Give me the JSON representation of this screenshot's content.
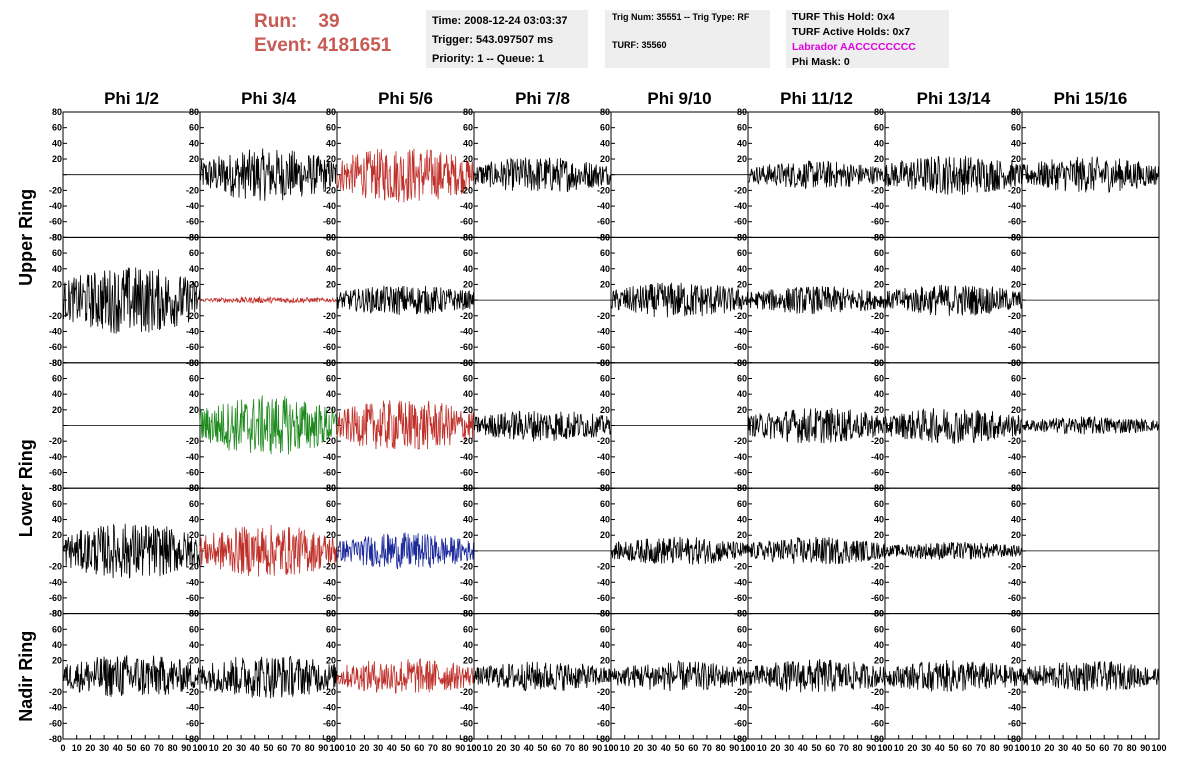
{
  "header": {
    "run_label": "Run:",
    "run_value": "39",
    "event_label": "Event:",
    "event_value": "4181651"
  },
  "info_box_1": {
    "time": "Time: 2008-12-24 03:03:37",
    "trigger": "Trigger: 543.097507 ms",
    "priority": "Priority: 1 -- Queue: 1"
  },
  "info_box_2": {
    "trig": "Trig Num: 35551 -- Trig Type: RF",
    "turf": "TURF: 35560"
  },
  "info_box_3": {
    "this_hold": "TURF This Hold: 0x4",
    "active_holds": "TURF Active Holds: 0x7",
    "labrador": "Labrador AACCCCCCCC",
    "phi_mask": "Phi Mask: 0"
  },
  "colors": {
    "run_text": "#c85a54",
    "labrador_text": "#e000e0",
    "trace_black": "#000000",
    "trace_red": "#c0302a",
    "trace_green": "#1e8a1e",
    "trace_blue": "#1c2a9c"
  },
  "chart_data": {
    "type": "line",
    "description_of_grid": "5 rows x 8 columns of waveform panels",
    "columns": [
      "Phi 1/2",
      "Phi 3/4",
      "Phi 5/6",
      "Phi 7/8",
      "Phi 9/10",
      "Phi 11/12",
      "Phi 13/14",
      "Phi 15/16"
    ],
    "row_groups": [
      "Upper Ring",
      "Lower Ring",
      "Nadir Ring"
    ],
    "xlim": [
      0,
      100
    ],
    "ylim": [
      -80,
      80
    ],
    "x_ticks": [
      "0",
      "10",
      "20",
      "30",
      "40",
      "50",
      "60",
      "70",
      "80",
      "90",
      "100"
    ],
    "y_ticks": [
      "-80",
      "-60",
      "-40",
      "-20",
      "0",
      "20",
      "40",
      "60",
      "80"
    ],
    "panels": [
      [
        {
          "c": "flat",
          "a": 0
        },
        {
          "c": "black",
          "a": 26
        },
        {
          "c": "red",
          "a": 28
        },
        {
          "c": "black",
          "a": 18
        },
        {
          "c": "flat",
          "a": 0
        },
        {
          "c": "black",
          "a": 14
        },
        {
          "c": "black",
          "a": 20
        },
        {
          "c": "black",
          "a": 18
        }
      ],
      [
        {
          "c": "black",
          "a": 34
        },
        {
          "c": "red",
          "a": 3
        },
        {
          "c": "black",
          "a": 15
        },
        {
          "c": "flat",
          "a": 0
        },
        {
          "c": "black",
          "a": 18
        },
        {
          "c": "black",
          "a": 14
        },
        {
          "c": "black",
          "a": 16
        },
        {
          "c": "flat",
          "a": 0
        }
      ],
      [
        {
          "c": "flat",
          "a": 0
        },
        {
          "c": "green",
          "a": 30
        },
        {
          "c": "red",
          "a": 26
        },
        {
          "c": "black",
          "a": 16
        },
        {
          "c": "flat",
          "a": 0
        },
        {
          "c": "black",
          "a": 18
        },
        {
          "c": "black",
          "a": 18
        },
        {
          "c": "black",
          "a": 9
        }
      ],
      [
        {
          "c": "black",
          "a": 28
        },
        {
          "c": "red",
          "a": 26
        },
        {
          "c": "blue",
          "a": 18
        },
        {
          "c": "flat",
          "a": 0
        },
        {
          "c": "black",
          "a": 14
        },
        {
          "c": "black",
          "a": 14
        },
        {
          "c": "black",
          "a": 9
        },
        {
          "c": "flat",
          "a": 0
        }
      ],
      [
        {
          "c": "black",
          "a": 22
        },
        {
          "c": "black",
          "a": 22
        },
        {
          "c": "red",
          "a": 18
        },
        {
          "c": "black",
          "a": 15
        },
        {
          "c": "black",
          "a": 15
        },
        {
          "c": "black",
          "a": 17
        },
        {
          "c": "black",
          "a": 16
        },
        {
          "c": "black",
          "a": 15
        }
      ]
    ]
  }
}
